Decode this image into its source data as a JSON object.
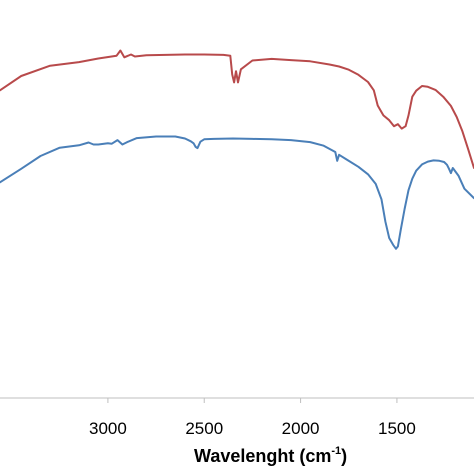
{
  "chart_data": {
    "type": "line",
    "xlabel": "Wavelenght (cm",
    "xlabel_sup": "-1",
    "xlabel_end": ")",
    "x_reversed": true,
    "xlim": [
      3560,
      1100
    ],
    "ylim": [
      0,
      100
    ],
    "y_axis_visible": false,
    "grid": false,
    "legend": "none",
    "x_ticks": [
      {
        "value": 3000,
        "label": "3000"
      },
      {
        "value": 2500,
        "label": "2500"
      },
      {
        "value": 2000,
        "label": "2000"
      },
      {
        "value": 1500,
        "label": "1500"
      }
    ],
    "series": [
      {
        "color": "#b84a4b",
        "points": [
          [
            3560,
            77.3
          ],
          [
            3450,
            80.9
          ],
          [
            3300,
            83.5
          ],
          [
            3150,
            84.4
          ],
          [
            3050,
            85.3
          ],
          [
            2955,
            86.0
          ],
          [
            2935,
            87.3
          ],
          [
            2915,
            85.6
          ],
          [
            2880,
            86.3
          ],
          [
            2860,
            85.8
          ],
          [
            2800,
            86.1
          ],
          [
            2700,
            86.2
          ],
          [
            2600,
            86.3
          ],
          [
            2500,
            86.3
          ],
          [
            2400,
            86.2
          ],
          [
            2365,
            86.0
          ],
          [
            2355,
            81.3
          ],
          [
            2345,
            79.3
          ],
          [
            2335,
            82.1
          ],
          [
            2325,
            79.3
          ],
          [
            2310,
            82.6
          ],
          [
            2250,
            84.8
          ],
          [
            2150,
            85.2
          ],
          [
            2050,
            84.9
          ],
          [
            1950,
            84.6
          ],
          [
            1850,
            83.8
          ],
          [
            1800,
            83.3
          ],
          [
            1750,
            82.5
          ],
          [
            1700,
            81.2
          ],
          [
            1650,
            79.4
          ],
          [
            1620,
            77.3
          ],
          [
            1600,
            73.5
          ],
          [
            1570,
            71.0
          ],
          [
            1540,
            69.8
          ],
          [
            1515,
            68.3
          ],
          [
            1495,
            68.8
          ],
          [
            1475,
            67.7
          ],
          [
            1455,
            68.3
          ],
          [
            1440,
            71.0
          ],
          [
            1420,
            75.7
          ],
          [
            1400,
            77.2
          ],
          [
            1370,
            78.4
          ],
          [
            1340,
            78.2
          ],
          [
            1300,
            77.4
          ],
          [
            1260,
            75.7
          ],
          [
            1220,
            73.4
          ],
          [
            1190,
            70.6
          ],
          [
            1160,
            67.0
          ],
          [
            1130,
            62.5
          ],
          [
            1100,
            57.8
          ]
        ]
      },
      {
        "color": "#4a7fb8",
        "points": [
          [
            3560,
            54.2
          ],
          [
            3450,
            57.6
          ],
          [
            3350,
            60.8
          ],
          [
            3250,
            62.9
          ],
          [
            3150,
            63.5
          ],
          [
            3100,
            64.2
          ],
          [
            3075,
            63.7
          ],
          [
            3050,
            63.7
          ],
          [
            3000,
            64.0
          ],
          [
            2980,
            63.9
          ],
          [
            2950,
            64.8
          ],
          [
            2925,
            63.7
          ],
          [
            2900,
            64.3
          ],
          [
            2850,
            65.3
          ],
          [
            2750,
            65.7
          ],
          [
            2650,
            65.7
          ],
          [
            2600,
            65.2
          ],
          [
            2570,
            64.5
          ],
          [
            2555,
            64.0
          ],
          [
            2545,
            63.1
          ],
          [
            2535,
            62.8
          ],
          [
            2520,
            64.4
          ],
          [
            2500,
            65.0
          ],
          [
            2450,
            65.1
          ],
          [
            2350,
            65.2
          ],
          [
            2250,
            65.1
          ],
          [
            2150,
            65.0
          ],
          [
            2050,
            64.8
          ],
          [
            1950,
            64.3
          ],
          [
            1880,
            63.4
          ],
          [
            1820,
            61.8
          ],
          [
            1810,
            59.6
          ],
          [
            1800,
            61.1
          ],
          [
            1760,
            59.9
          ],
          [
            1700,
            58.1
          ],
          [
            1650,
            56.2
          ],
          [
            1610,
            53.8
          ],
          [
            1580,
            49.9
          ],
          [
            1560,
            44.3
          ],
          [
            1540,
            40.2
          ],
          [
            1520,
            38.5
          ],
          [
            1505,
            37.5
          ],
          [
            1495,
            38.1
          ],
          [
            1480,
            42.3
          ],
          [
            1460,
            47.5
          ],
          [
            1440,
            52.2
          ],
          [
            1420,
            55.1
          ],
          [
            1400,
            57.1
          ],
          [
            1370,
            58.7
          ],
          [
            1340,
            59.4
          ],
          [
            1310,
            59.7
          ],
          [
            1280,
            59.6
          ],
          [
            1255,
            59.3
          ],
          [
            1240,
            58.6
          ],
          [
            1230,
            57.6
          ],
          [
            1220,
            56.5
          ],
          [
            1210,
            57.8
          ],
          [
            1180,
            55.8
          ],
          [
            1150,
            52.6
          ],
          [
            1100,
            50.2
          ]
        ]
      }
    ]
  }
}
